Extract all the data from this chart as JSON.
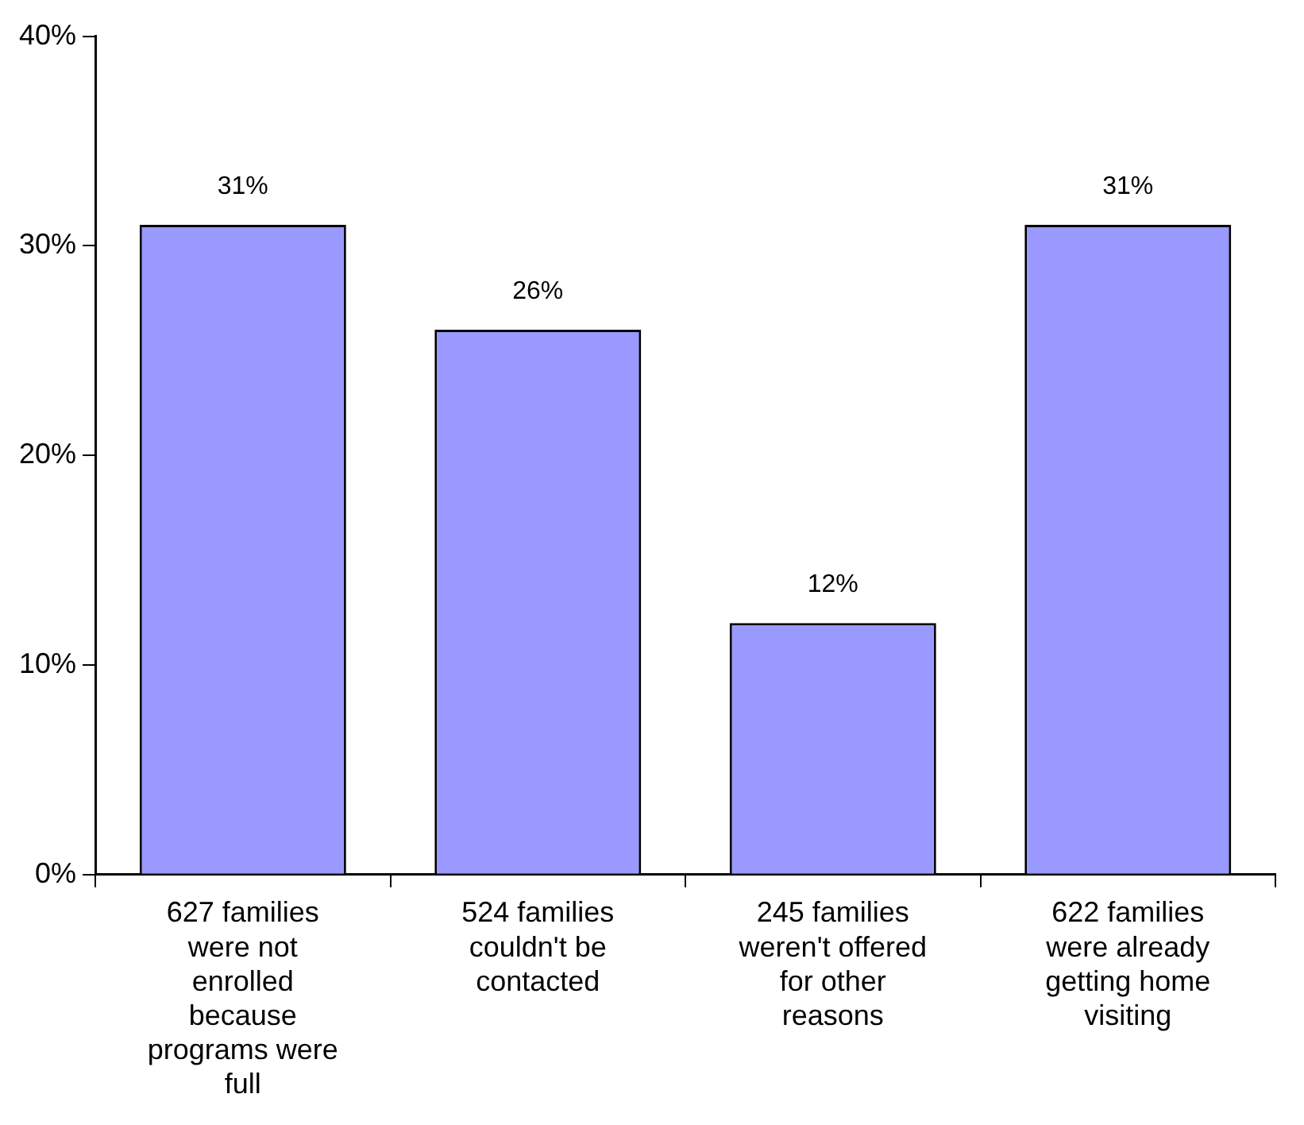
{
  "chart_data": {
    "type": "bar",
    "categories": [
      "627 families were not enrolled because programs were full",
      "524 families couldn't be contacted",
      "245 families weren't offered for other reasons",
      "622 families were already getting home visiting"
    ],
    "values": [
      31,
      26,
      12,
      31
    ],
    "value_labels": [
      "31%",
      "26%",
      "12%",
      "31%"
    ],
    "color": "#9999ff",
    "ylim": [
      0,
      40
    ],
    "yticks": [
      {
        "value": 0,
        "label": "0%"
      },
      {
        "value": 10,
        "label": "10%"
      },
      {
        "value": 20,
        "label": "20%"
      },
      {
        "value": 30,
        "label": "30%"
      },
      {
        "value": 40,
        "label": "40%"
      }
    ],
    "grid": false,
    "legend": false
  }
}
